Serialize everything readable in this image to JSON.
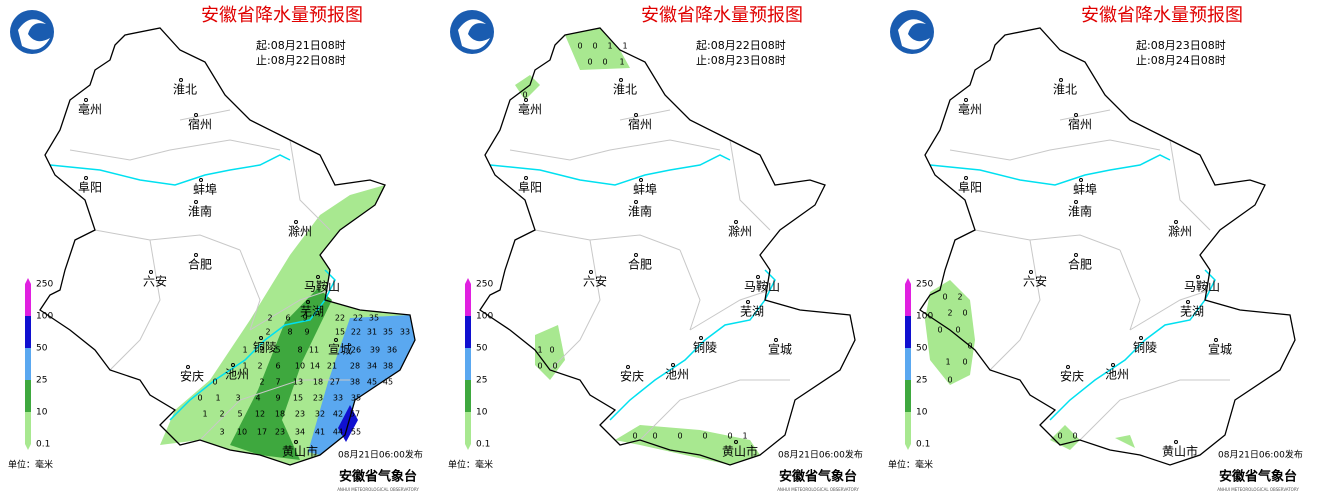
{
  "cities": [
    "淮北",
    "亳州",
    "宿州",
    "阜阳",
    "蚌埠",
    "淮南",
    "滁州",
    "六安",
    "合肥",
    "马鞍山",
    "芜湖",
    "铜陵",
    "宣城",
    "安庆",
    "池州",
    "黄山市"
  ],
  "legend": {
    "ticks": [
      250,
      100,
      50,
      25,
      10,
      0.1
    ],
    "unit": "单位：毫米"
  },
  "panels": [
    {
      "title": "安徽省降水量预报图",
      "start": "起:08月21日08时",
      "end": "止:08月22日08时",
      "issued": "08月21日06:00发布",
      "org": "安徽省气象台",
      "org_en": "ANHUI METEOROLOGICAL OBSERVATORY",
      "grid_values": [
        2,
        6,
        9,
        22,
        22,
        35,
        2,
        8,
        9,
        15,
        22,
        31,
        35,
        33,
        1,
        2,
        5,
        8,
        11,
        26,
        39,
        36,
        1,
        2,
        6,
        10,
        14,
        21,
        28,
        34,
        38,
        0,
        2,
        7,
        13,
        18,
        27,
        38,
        45,
        45,
        0,
        1,
        3,
        4,
        9,
        15,
        23,
        33,
        35,
        1,
        2,
        5,
        12,
        18,
        23,
        32,
        42,
        57,
        3,
        10,
        17,
        23,
        34,
        41,
        44,
        55
      ]
    },
    {
      "title": "安徽省降水量预报图",
      "start": "起:08月22日08时",
      "end": "止:08月23日08时",
      "issued": "08月21日06:00发布",
      "org": "安徽省气象台",
      "org_en": "ANHUI METEOROLOGICAL OBSERVATORY",
      "grid_values": [
        0,
        0,
        1,
        1,
        0,
        0,
        1,
        0,
        1,
        0,
        0,
        0,
        0,
        0,
        0,
        0,
        0,
        1
      ]
    },
    {
      "title": "安徽省降水量预报图",
      "start": "起:08月23日08时",
      "end": "止:08月24日08时",
      "issued": "08月21日06:00发布",
      "org": "安徽省气象台",
      "org_en": "ANHUI METEOROLOGICAL OBSERVATORY",
      "grid_values": [
        0,
        2,
        2,
        0,
        0,
        0,
        0,
        1,
        0,
        0,
        0,
        0
      ]
    }
  ]
}
